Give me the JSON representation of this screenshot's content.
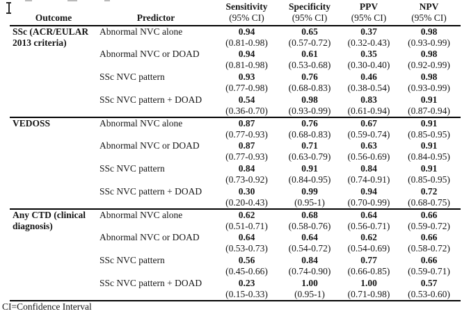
{
  "header": {
    "outcome": "Outcome",
    "predictor": "Predictor",
    "metrics": [
      {
        "label": "Sensitivity",
        "sub": "(95% CI)"
      },
      {
        "label": "Specificity",
        "sub": "(95% CI)"
      },
      {
        "label": "PPV",
        "sub": "(95% CI)"
      },
      {
        "label": "NPV",
        "sub": "(95% CI)"
      }
    ]
  },
  "sections": [
    {
      "outcome": "SSc (ACR/EULAR 2013 criteria)",
      "rows": [
        {
          "predictor": "Abnormal NVC alone",
          "sensitivity": {
            "value": "0.94",
            "ci": "(0.81-0.98)"
          },
          "specificity": {
            "value": "0.65",
            "ci": "(0.57-0.72)"
          },
          "ppv": {
            "value": "0.37",
            "ci": "(0.32-0.43)"
          },
          "npv": {
            "value": "0.98",
            "ci": "(0.93-0.99)"
          }
        },
        {
          "predictor": "Abnormal NVC or DOAD",
          "sensitivity": {
            "value": "0.94",
            "ci": "(0.81-0.98)"
          },
          "specificity": {
            "value": "0.61",
            "ci": "(0.53-0.68)"
          },
          "ppv": {
            "value": "0.35",
            "ci": "(0.30-0.40)"
          },
          "npv": {
            "value": "0.98",
            "ci": "(0.92-0.99)"
          }
        },
        {
          "predictor": "SSc NVC pattern",
          "sensitivity": {
            "value": "0.93",
            "ci": "(0.77-0.98)"
          },
          "specificity": {
            "value": "0.76",
            "ci": "(0.68-0.83)"
          },
          "ppv": {
            "value": "0.46",
            "ci": "(0.38-0.54)"
          },
          "npv": {
            "value": "0.98",
            "ci": "(0.93-0.99)"
          }
        },
        {
          "predictor": "SSc NVC pattern + DOAD",
          "sensitivity": {
            "value": "0.54",
            "ci": "(0.36-0.70)"
          },
          "specificity": {
            "value": "0.98",
            "ci": "(0.93-0.99)"
          },
          "ppv": {
            "value": "0.83",
            "ci": "(0.61-0.94)"
          },
          "npv": {
            "value": "0.91",
            "ci": "(0.87-0.94)"
          }
        }
      ]
    },
    {
      "outcome": "VEDOSS",
      "rows": [
        {
          "predictor": "Abnormal NVC alone",
          "sensitivity": {
            "value": "0.87",
            "ci": "(0.77-0.93)"
          },
          "specificity": {
            "value": "0.76",
            "ci": "(0.68-0.83)"
          },
          "ppv": {
            "value": "0.67",
            "ci": "(0.59-0.74)"
          },
          "npv": {
            "value": "0.91",
            "ci": "(0.85-0.95)"
          }
        },
        {
          "predictor": "Abnormal NVC or DOAD",
          "sensitivity": {
            "value": "0.87",
            "ci": "(0.77-0.93)"
          },
          "specificity": {
            "value": "0.71",
            "ci": "(0.63-0.79)"
          },
          "ppv": {
            "value": "0.63",
            "ci": "(0.56-0.69)"
          },
          "npv": {
            "value": "0.91",
            "ci": "(0.84-0.95)"
          }
        },
        {
          "predictor": "SSc NVC pattern",
          "sensitivity": {
            "value": "0.84",
            "ci": "(0.73-0.92)"
          },
          "specificity": {
            "value": "0.91",
            "ci": "(0.84-0.95)"
          },
          "ppv": {
            "value": "0.84",
            "ci": "(0.74-0.91)"
          },
          "npv": {
            "value": "0.91",
            "ci": "(0.85-0.95)"
          }
        },
        {
          "predictor": "SSc NVC pattern + DOAD",
          "sensitivity": {
            "value": "0.30",
            "ci": "(0.20-0.43)"
          },
          "specificity": {
            "value": "0.99",
            "ci": "(0.95-1)"
          },
          "ppv": {
            "value": "0.94",
            "ci": "(0.70-0.99)"
          },
          "npv": {
            "value": "0.72",
            "ci": "(0.68-0.75)"
          }
        }
      ]
    },
    {
      "outcome": "Any CTD (clinical diagnosis)",
      "rows": [
        {
          "predictor": "Abnormal NVC alone",
          "sensitivity": {
            "value": "0.62",
            "ci": "(0.51-0.71)"
          },
          "specificity": {
            "value": "0.68",
            "ci": "(0.58-0.76)"
          },
          "ppv": {
            "value": "0.64",
            "ci": "(0.56-0.71)"
          },
          "npv": {
            "value": "0.66",
            "ci": "(0.59-0.72)"
          }
        },
        {
          "predictor": "Abnormal NVC or DOAD",
          "sensitivity": {
            "value": "0.64",
            "ci": "(0.53-0.73)"
          },
          "specificity": {
            "value": "0.64",
            "ci": "(0.54-0.72)"
          },
          "ppv": {
            "value": "0.62",
            "ci": "(0.54-0.69)"
          },
          "npv": {
            "value": "0.66",
            "ci": "(0.58-0.72)"
          }
        },
        {
          "predictor": "SSc NVC pattern",
          "sensitivity": {
            "value": "0.56",
            "ci": "(0.45-0.66)"
          },
          "specificity": {
            "value": "0.84",
            "ci": "(0.74-0.90)"
          },
          "ppv": {
            "value": "0.77",
            "ci": "(0.66-0.85)"
          },
          "npv": {
            "value": "0.66",
            "ci": "(0.59-0.71)"
          }
        },
        {
          "predictor": "SSc NVC pattern + DOAD",
          "sensitivity": {
            "value": "0.23",
            "ci": "(0.15-0.33)"
          },
          "specificity": {
            "value": "1.00",
            "ci": "(0.95-1)"
          },
          "ppv": {
            "value": "1.00",
            "ci": "(0.71-0.98)"
          },
          "npv": {
            "value": "0.57",
            "ci": "(0.53-0.60)"
          }
        }
      ]
    }
  ],
  "footnote": "CI=Confidence Interval"
}
